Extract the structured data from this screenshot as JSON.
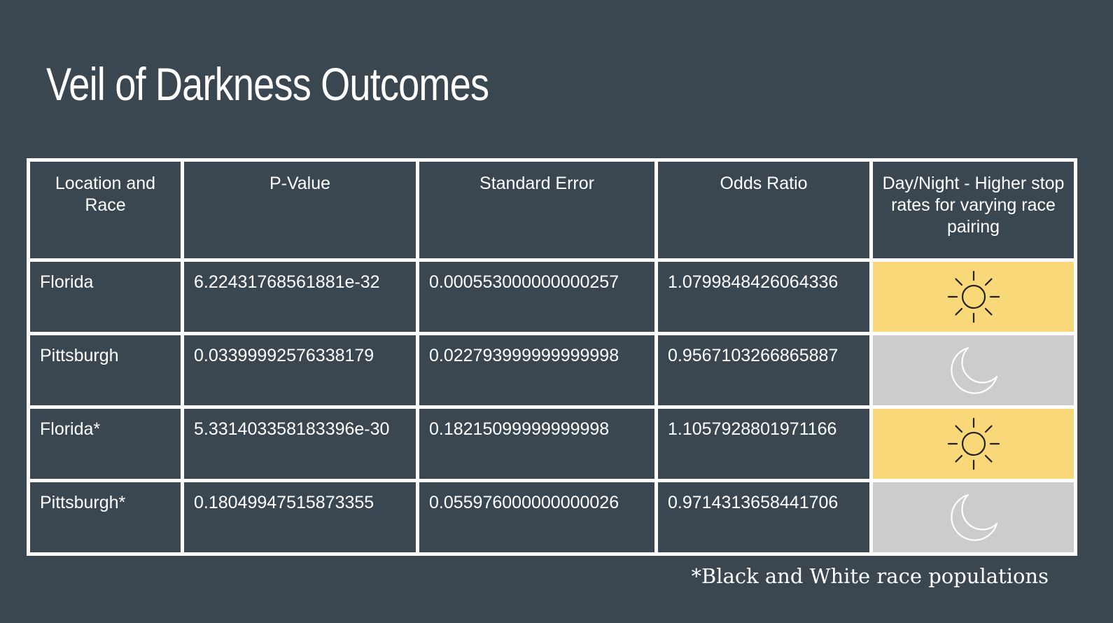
{
  "slide": {
    "title": "Veil of Darkness Outcomes",
    "footnote": "*Black and White race populations"
  },
  "table": {
    "headers": [
      "Location and Race",
      "P-Value",
      "Standard Error",
      "Odds Ratio",
      "Day/Night - Higher stop rates for varying race pairing"
    ],
    "rows": [
      {
        "location": "Florida",
        "p_value": "6.22431768561881e-32",
        "standard_error": "0.000553000000000257",
        "odds_ratio": "1.0799848426064336",
        "period_icon": "sun-icon"
      },
      {
        "location": "Pittsburgh",
        "p_value": "0.03399992576338179",
        "standard_error": "0.022793999999999998",
        "odds_ratio": "0.9567103266865887",
        "period_icon": "moon-icon"
      },
      {
        "location": "Florida*",
        "p_value": "5.331403358183396e-30",
        "standard_error": "0.18215099999999998",
        "odds_ratio": "1.1057928801971166",
        "period_icon": "sun-icon"
      },
      {
        "location": "Pittsburgh*",
        "p_value": "0.18049947515873355",
        "standard_error": "0.055976000000000026",
        "odds_ratio": "0.9714313658441706",
        "period_icon": "moon-icon"
      }
    ]
  },
  "colors": {
    "background": "#3a4750",
    "grid": "#ffffff",
    "text": "#ffffff",
    "day_cell": "#f9d87a",
    "night_cell": "#cccccc",
    "sun_stroke": "#222222",
    "moon_stroke": "#ffffff"
  }
}
